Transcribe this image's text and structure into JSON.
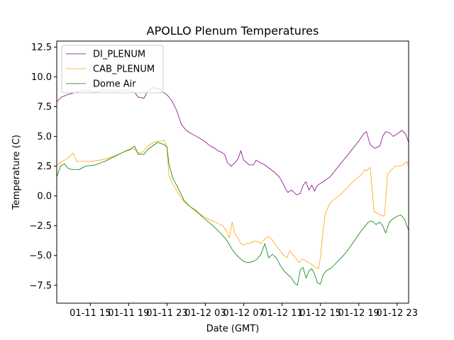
{
  "chart_data": {
    "type": "line",
    "title": "APOLLO Plenum Temperatures",
    "xlabel": "Date (GMT)",
    "ylabel": "Temperature (C)",
    "xlim": [
      11.5,
      48.2
    ],
    "ylim": [
      -9.0,
      13.0
    ],
    "x_unit": "hours since 01-11 00:00 GMT",
    "xticks": [
      {
        "value": 15,
        "label": "01-11 15"
      },
      {
        "value": 19,
        "label": "01-11 19"
      },
      {
        "value": 23,
        "label": "01-11 23"
      },
      {
        "value": 27,
        "label": "01-12 03"
      },
      {
        "value": 31,
        "label": "01-12 07"
      },
      {
        "value": 35,
        "label": "01-12 11"
      },
      {
        "value": 39,
        "label": "01-12 15"
      },
      {
        "value": 43,
        "label": "01-12 19"
      },
      {
        "value": 47,
        "label": "01-12 23"
      }
    ],
    "yticks": [
      -7.5,
      -5.0,
      -2.5,
      0.0,
      2.5,
      5.0,
      7.5,
      10.0,
      12.5
    ],
    "ytick_labels": [
      "−7.5",
      "−5.0",
      "−2.5",
      "0.0",
      "2.5",
      "5.0",
      "7.5",
      "10.0",
      "12.5"
    ],
    "legend_position": "top-left",
    "series": [
      {
        "name": "DI_PLENUM",
        "color": "#800080",
        "x": [
          11.5,
          12.0,
          12.6,
          13.5,
          14.5,
          15.5,
          16.5,
          17.5,
          18.5,
          19.5,
          20.0,
          20.6,
          21.0,
          21.5,
          22.0,
          22.3,
          22.6,
          23.0,
          23.5,
          24.0,
          24.5,
          25.0,
          25.6,
          26.3,
          26.9,
          27.5,
          28.0,
          28.3,
          28.6,
          29.0,
          29.3,
          29.7,
          30.1,
          30.4,
          30.7,
          31.0,
          31.6,
          32.0,
          32.3,
          32.7,
          33.2,
          33.7,
          34.2,
          34.7,
          35.0,
          35.3,
          35.6,
          36.0,
          36.5,
          36.9,
          37.2,
          37.5,
          37.8,
          38.1,
          38.4,
          38.6,
          38.9,
          39.3,
          40.0,
          40.6,
          41.2,
          41.8,
          42.4,
          43.0,
          43.5,
          43.8,
          44.2,
          44.7,
          45.2,
          45.5,
          45.8,
          46.2,
          46.6,
          47.0,
          47.5,
          47.9,
          48.2
        ],
        "y": [
          7.9,
          8.3,
          8.5,
          8.7,
          8.9,
          8.7,
          8.9,
          8.8,
          8.9,
          8.8,
          8.3,
          8.2,
          8.8,
          9.1,
          9.0,
          8.9,
          8.7,
          8.5,
          8.0,
          7.2,
          6.0,
          5.5,
          5.2,
          4.9,
          4.6,
          4.2,
          4.0,
          3.8,
          3.7,
          3.5,
          2.8,
          2.5,
          2.8,
          3.1,
          3.8,
          3.0,
          2.6,
          2.6,
          3.0,
          2.8,
          2.6,
          2.3,
          2.0,
          1.6,
          1.2,
          0.7,
          0.3,
          0.5,
          0.1,
          0.2,
          0.9,
          1.2,
          0.5,
          0.9,
          0.4,
          0.8,
          1.0,
          1.2,
          1.6,
          2.2,
          2.8,
          3.4,
          4.0,
          4.6,
          5.2,
          5.4,
          4.3,
          4.0,
          4.2,
          5.0,
          5.4,
          5.3,
          5.0,
          5.2,
          5.5,
          5.2,
          4.5
        ]
      },
      {
        "name": "CAB_PLENUM",
        "color": "#FFA500",
        "x": [
          11.5,
          11.9,
          12.3,
          12.7,
          13.2,
          13.6,
          14.2,
          15.0,
          16.0,
          17.0,
          18.0,
          18.5,
          19.0,
          19.5,
          20.0,
          20.5,
          21.0,
          21.6,
          22.0,
          22.4,
          22.7,
          23.0,
          23.2,
          23.6,
          24.2,
          24.8,
          25.4,
          26.0,
          26.6,
          27.2,
          27.8,
          28.3,
          28.8,
          29.2,
          29.5,
          29.8,
          30.1,
          30.4,
          30.7,
          31.0,
          31.3,
          31.6,
          32.0,
          32.4,
          32.8,
          33.2,
          33.6,
          34.0,
          34.4,
          34.8,
          35.2,
          35.5,
          35.8,
          36.2,
          36.5,
          36.8,
          37.1,
          37.4,
          37.8,
          38.2,
          38.5,
          38.8,
          39.0,
          39.2,
          39.5,
          40.0,
          40.6,
          41.2,
          41.8,
          42.4,
          43.0,
          43.4,
          43.6,
          43.8,
          44.2,
          44.6,
          45.0,
          45.3,
          45.5,
          45.7,
          46.0,
          46.4,
          46.8,
          47.2,
          47.6,
          48.0,
          48.2
        ],
        "y": [
          2.6,
          2.8,
          3.0,
          3.2,
          3.6,
          2.9,
          2.9,
          2.9,
          3.0,
          3.2,
          3.5,
          3.7,
          3.9,
          4.0,
          3.6,
          3.7,
          4.2,
          4.5,
          4.6,
          4.6,
          4.7,
          4.1,
          1.7,
          1.0,
          0.2,
          -0.5,
          -0.9,
          -1.3,
          -1.6,
          -1.9,
          -2.1,
          -2.3,
          -2.5,
          -2.9,
          -3.5,
          -2.2,
          -3.2,
          -3.5,
          -4.0,
          -4.1,
          -4.0,
          -4.0,
          -3.8,
          -3.8,
          -4.0,
          -3.6,
          -3.4,
          -3.7,
          -4.2,
          -4.6,
          -5.0,
          -5.2,
          -4.6,
          -5.0,
          -5.3,
          -5.6,
          -5.3,
          -5.4,
          -5.6,
          -5.8,
          -6.0,
          -6.1,
          -5.2,
          -3.5,
          -1.5,
          -0.6,
          -0.2,
          0.2,
          0.7,
          1.2,
          1.6,
          1.9,
          2.2,
          2.1,
          2.4,
          -1.3,
          -1.5,
          -1.6,
          -1.7,
          -1.6,
          1.8,
          2.2,
          2.5,
          2.5,
          2.6,
          2.9,
          2.5
        ]
      },
      {
        "name": "Dome Air",
        "color": "#008000",
        "x": [
          11.5,
          11.9,
          12.3,
          12.7,
          13.2,
          13.8,
          14.5,
          15.5,
          16.5,
          17.5,
          18.5,
          19.2,
          19.6,
          20.0,
          20.6,
          21.0,
          21.5,
          22.0,
          22.4,
          22.7,
          23.0,
          23.2,
          23.6,
          24.2,
          24.8,
          25.4,
          26.0,
          26.6,
          27.2,
          27.8,
          28.3,
          28.8,
          29.3,
          29.8,
          30.3,
          30.7,
          31.0,
          31.5,
          32.0,
          32.4,
          32.8,
          33.2,
          33.6,
          34.0,
          34.4,
          34.8,
          35.2,
          35.6,
          36.0,
          36.3,
          36.6,
          36.9,
          37.2,
          37.5,
          37.8,
          38.1,
          38.4,
          38.7,
          39.0,
          39.3,
          39.6,
          40.2,
          40.8,
          41.4,
          42.0,
          42.6,
          43.2,
          43.6,
          44.0,
          44.4,
          44.8,
          45.2,
          45.5,
          45.8,
          46.2,
          46.6,
          47.0,
          47.4,
          47.8,
          48.2
        ],
        "y": [
          1.6,
          2.5,
          2.7,
          2.3,
          2.2,
          2.2,
          2.5,
          2.6,
          2.9,
          3.3,
          3.7,
          3.9,
          4.2,
          3.5,
          3.5,
          3.9,
          4.2,
          4.5,
          4.4,
          4.3,
          4.1,
          2.7,
          1.5,
          0.6,
          -0.4,
          -0.9,
          -1.2,
          -1.7,
          -2.1,
          -2.5,
          -2.9,
          -3.3,
          -3.8,
          -4.5,
          -5.0,
          -5.3,
          -5.5,
          -5.6,
          -5.5,
          -5.3,
          -4.9,
          -4.0,
          -5.2,
          -4.9,
          -5.2,
          -5.8,
          -6.3,
          -6.6,
          -6.9,
          -7.3,
          -7.5,
          -6.2,
          -6.0,
          -6.9,
          -6.3,
          -6.1,
          -6.6,
          -7.3,
          -7.4,
          -6.6,
          -6.3,
          -6.0,
          -5.5,
          -5.0,
          -4.4,
          -3.7,
          -3.0,
          -2.6,
          -2.2,
          -2.1,
          -2.4,
          -2.2,
          -2.5,
          -3.1,
          -2.2,
          -1.9,
          -1.7,
          -1.6,
          -2.0,
          -2.9
        ]
      }
    ]
  }
}
